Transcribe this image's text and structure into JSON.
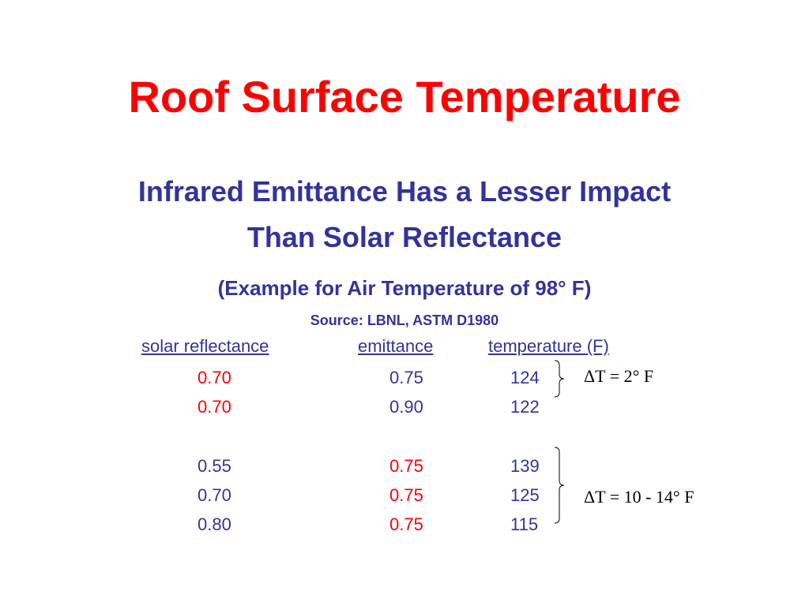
{
  "slide": {
    "title": "Roof Surface Temperature",
    "subtitle_line1": "Infrared Emittance Has a Lesser Impact",
    "subtitle_line2": "Than Solar Reflectance",
    "example_note": "(Example for Air Temperature of 98° F)",
    "source_note": "Source: LBNL, ASTM D1980"
  },
  "table": {
    "headers": {
      "solar_reflectance": "solar reflectance",
      "emittance": "emittance",
      "temperature": "temperature (F)"
    },
    "rows": [
      {
        "solar_reflectance": "0.70",
        "emittance": "0.75",
        "temperature": "124"
      },
      {
        "solar_reflectance": "0.70",
        "emittance": "0.90",
        "temperature": "122"
      },
      {
        "solar_reflectance": "0.55",
        "emittance": "0.75",
        "temperature": "139"
      },
      {
        "solar_reflectance": "0.70",
        "emittance": "0.75",
        "temperature": "125"
      },
      {
        "solar_reflectance": "0.80",
        "emittance": "0.75",
        "temperature": "115"
      }
    ]
  },
  "annotations": {
    "group1_delta": "ΔT = 2° F",
    "group2_delta": "ΔT = 10 - 14° F"
  },
  "colors": {
    "title_red": "#ff0000",
    "body_blue": "#333399",
    "highlight_red": "#ff0000",
    "annotation_black": "#000000"
  }
}
